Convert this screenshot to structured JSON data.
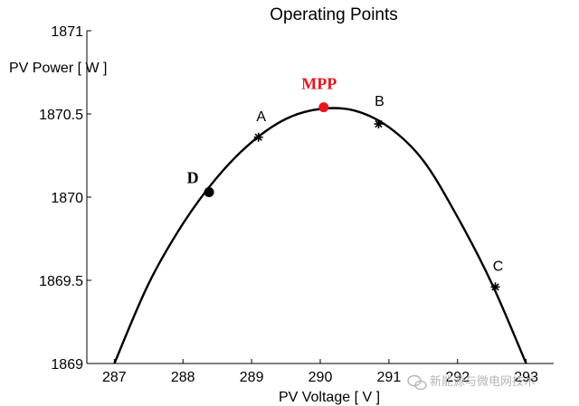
{
  "chart_data": {
    "type": "line",
    "title": "Operating Points",
    "xlabel": "PV Voltage [ V ]",
    "ylabel": "PV Power [ W ]",
    "xlim": [
      286.6,
      293.4
    ],
    "ylim": [
      1869,
      1871
    ],
    "x_ticks": [
      "287",
      "288",
      "289",
      "290",
      "291",
      "292",
      "293"
    ],
    "y_ticks": [
      "1869",
      "1869.5",
      "1870",
      "1870.5",
      "1871"
    ],
    "series": [
      {
        "x": [
          287.0,
          287.5,
          288.0,
          288.5,
          289.0,
          289.5,
          290.0,
          290.5,
          291.0,
          291.5,
          292.0,
          292.5,
          293.0
        ],
        "y": [
          1869.0,
          1869.48,
          1869.84,
          1870.12,
          1870.33,
          1870.47,
          1870.53,
          1870.52,
          1870.42,
          1870.22,
          1869.88,
          1869.48,
          1869.0
        ]
      }
    ],
    "points": [
      {
        "label": "A",
        "x": 289.1,
        "y": 1870.36,
        "marker": "star",
        "color": "#000000"
      },
      {
        "label": "B",
        "x": 290.85,
        "y": 1870.44,
        "marker": "star",
        "color": "#000000"
      },
      {
        "label": "C",
        "x": 292.55,
        "y": 1869.46,
        "marker": "star",
        "color": "#000000"
      },
      {
        "label": "D",
        "x": 288.38,
        "y": 1870.03,
        "marker": "dot",
        "color": "#000000"
      },
      {
        "label": "MPP",
        "x": 290.05,
        "y": 1870.54,
        "marker": "dot",
        "color": "#e8141b"
      }
    ]
  },
  "watermark": {
    "text": "新能源与微电网技术",
    "icon": "wechat-icon"
  }
}
